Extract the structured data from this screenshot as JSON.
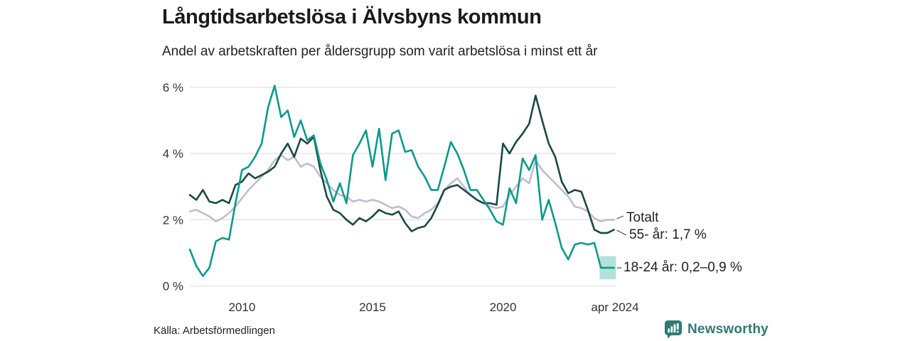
{
  "header": {
    "title": "Långtidsarbetslösa i Älvsbyns kommun",
    "subtitle": "Andel av arbetskraften per åldersgrupp som varit arbetslösa i minst ett år"
  },
  "chart_data": {
    "type": "line",
    "title": "Långtidsarbetslösa i Älvsbyns kommun",
    "subtitle": "Andel av arbetskraften per åldersgrupp som varit arbetslösa i minst ett år",
    "xlabel": "",
    "ylabel": "",
    "unit": "%",
    "grid": "horizontal",
    "legend_position": "right-end-labels",
    "xlim": [
      2008,
      2024.33
    ],
    "ylim": [
      0,
      6.4
    ],
    "y_ticks": [
      {
        "value": 6,
        "label": "6 %"
      },
      {
        "value": 4,
        "label": "4 %"
      },
      {
        "value": 2,
        "label": "2 %"
      },
      {
        "value": 0,
        "label": "0 %"
      }
    ],
    "x_ticks": [
      {
        "year": 2010,
        "label": "2010"
      },
      {
        "year": 2015,
        "label": "2015"
      },
      {
        "year": 2020,
        "label": "2020"
      },
      {
        "year": 2024.29,
        "label": "apr 2024"
      }
    ],
    "x": [
      2008.0,
      2008.25,
      2008.5,
      2008.75,
      2009.0,
      2009.25,
      2009.5,
      2009.75,
      2010.0,
      2010.25,
      2010.5,
      2010.75,
      2011.0,
      2011.25,
      2011.5,
      2011.75,
      2012.0,
      2012.25,
      2012.5,
      2012.75,
      2013.0,
      2013.25,
      2013.5,
      2013.75,
      2014.0,
      2014.25,
      2014.5,
      2014.75,
      2015.0,
      2015.25,
      2015.5,
      2015.75,
      2016.0,
      2016.25,
      2016.5,
      2016.75,
      2017.0,
      2017.25,
      2017.5,
      2017.75,
      2018.0,
      2018.25,
      2018.5,
      2018.75,
      2019.0,
      2019.25,
      2019.5,
      2019.75,
      2020.0,
      2020.25,
      2020.5,
      2020.75,
      2021.0,
      2021.25,
      2021.5,
      2021.75,
      2022.0,
      2022.25,
      2022.5,
      2022.75,
      2023.0,
      2023.25,
      2023.5,
      2023.75,
      2024.0,
      2024.25
    ],
    "series": [
      {
        "id": "totalt",
        "name": "Totalt",
        "color": "#bfbccf",
        "values": [
          2.25,
          2.3,
          2.2,
          2.1,
          1.95,
          2.05,
          2.2,
          2.4,
          2.65,
          2.9,
          3.1,
          3.3,
          3.5,
          3.8,
          3.95,
          3.8,
          3.9,
          3.6,
          3.7,
          3.6,
          3.3,
          3.1,
          2.9,
          2.75,
          2.7,
          2.55,
          2.6,
          2.55,
          2.6,
          2.55,
          2.45,
          2.35,
          2.4,
          2.3,
          2.1,
          2.05,
          2.2,
          2.3,
          2.5,
          2.9,
          3.1,
          3.25,
          3.0,
          2.75,
          2.6,
          2.5,
          2.4,
          2.35,
          2.4,
          2.75,
          3.0,
          3.25,
          3.1,
          3.8,
          3.5,
          3.3,
          3.1,
          2.9,
          2.7,
          2.4,
          2.35,
          2.25,
          2.05,
          1.95,
          2.0,
          2.0
        ]
      },
      {
        "id": "55",
        "name": "55- år",
        "color": "#1b4942",
        "values": [
          2.75,
          2.6,
          2.9,
          2.55,
          2.5,
          2.6,
          2.5,
          3.05,
          3.15,
          3.4,
          3.25,
          3.35,
          3.45,
          3.6,
          4.0,
          4.3,
          3.9,
          4.45,
          4.3,
          4.5,
          3.5,
          2.7,
          2.3,
          2.2,
          2.0,
          1.85,
          2.05,
          1.95,
          2.1,
          2.3,
          2.2,
          2.15,
          2.25,
          1.9,
          1.65,
          1.75,
          1.8,
          2.05,
          2.45,
          2.9,
          3.0,
          3.05,
          2.9,
          2.75,
          2.6,
          2.5,
          2.5,
          2.45,
          4.3,
          4.0,
          4.35,
          4.6,
          4.9,
          5.75,
          5.0,
          4.3,
          3.9,
          3.15,
          2.8,
          2.9,
          2.85,
          2.3,
          1.7,
          1.6,
          1.6,
          1.7
        ]
      },
      {
        "id": "18-24",
        "name": "18-24 år",
        "color": "#0a9a89",
        "values": [
          1.1,
          0.6,
          0.3,
          0.55,
          1.35,
          1.45,
          1.4,
          2.5,
          3.5,
          3.6,
          3.9,
          4.3,
          5.4,
          6.05,
          5.1,
          5.3,
          4.5,
          5.0,
          4.4,
          4.55,
          3.7,
          3.2,
          2.55,
          3.1,
          2.5,
          3.95,
          4.3,
          4.7,
          3.6,
          4.75,
          3.2,
          4.6,
          4.7,
          4.05,
          4.1,
          3.6,
          3.3,
          2.9,
          2.9,
          3.6,
          4.35,
          4.0,
          3.5,
          2.9,
          2.9,
          2.6,
          2.3,
          1.95,
          1.85,
          2.95,
          2.5,
          3.85,
          3.5,
          3.95,
          2.0,
          2.6,
          1.9,
          1.15,
          0.8,
          1.25,
          1.3,
          1.25,
          1.3,
          0.55,
          0.55,
          0.55
        ]
      }
    ],
    "uncertainty_band": {
      "series": "18-24 år",
      "x_from": 2023.7,
      "x_to": 2024.33,
      "y_from": 0.2,
      "y_to": 0.9,
      "color": "#0a9a89",
      "opacity": 0.3
    },
    "end_labels": {
      "totalt": "Totalt",
      "age_55": "55- år: 1,7 %",
      "age_18_24": "18-24 år: 0,2–0,9 %"
    }
  },
  "footer": {
    "source": "Källa: Arbetsförmedlingen",
    "brand": "Newsworthy",
    "brand_color": "#2e7a73"
  }
}
